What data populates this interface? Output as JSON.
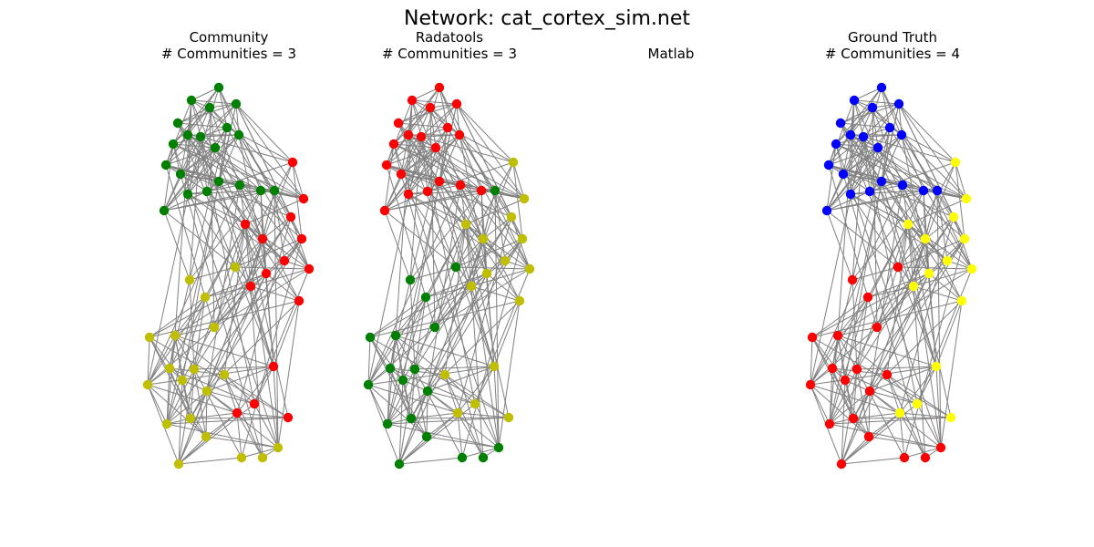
{
  "figure": {
    "title": "Network: cat_cortex_sim.net",
    "edge_color": "#808080",
    "node_colors": {
      "green": "#008000",
      "red": "#ff0000",
      "olive": "#bfbf00",
      "blue": "#0000ff",
      "yellow": "#ffff00"
    }
  },
  "panels": [
    {
      "key": "community",
      "title_line1": "Community",
      "title_line2": "# Communities = 3",
      "has_graph": true,
      "community_colors": [
        "green",
        "red",
        "olive"
      ],
      "node_communities": [
        0,
        0,
        0,
        0,
        0,
        0,
        0,
        0,
        0,
        0,
        0,
        0,
        0,
        0,
        0,
        0,
        0,
        0,
        0,
        0,
        1,
        1,
        1,
        1,
        1,
        1,
        1,
        1,
        1,
        1,
        1,
        1,
        1,
        1,
        1,
        2,
        2,
        2,
        2,
        2,
        2,
        2,
        2,
        2,
        2,
        2,
        2,
        2,
        2,
        2,
        2,
        2,
        2,
        2,
        1,
        1,
        1,
        1,
        1,
        1,
        1,
        1,
        1,
        1,
        1
      ]
    },
    {
      "key": "radatools",
      "title_line1": "Radatools",
      "title_line2": "# Communities = 3",
      "has_graph": true,
      "community_colors": [
        "red",
        "olive",
        "green"
      ],
      "node_communities": [
        0,
        0,
        0,
        0,
        0,
        0,
        0,
        0,
        0,
        0,
        0,
        0,
        0,
        0,
        0,
        0,
        0,
        0,
        0,
        2,
        1,
        1,
        1,
        1,
        1,
        1,
        1,
        1,
        1,
        1,
        1,
        1,
        1,
        1,
        1,
        2,
        2,
        2,
        2,
        2,
        2,
        2,
        2,
        2,
        2,
        2,
        2,
        2,
        2,
        2,
        2,
        2,
        2,
        1,
        1,
        1,
        1,
        1,
        1,
        1,
        1,
        1,
        1,
        1,
        1
      ]
    },
    {
      "key": "matlab",
      "title_line1": "Matlab",
      "title_line2": "",
      "has_graph": false,
      "community_colors": [],
      "node_communities": []
    },
    {
      "key": "ground-truth",
      "title_line1": "Ground Truth",
      "title_line2": "# Communities = 4",
      "has_graph": true,
      "community_colors": [
        "blue",
        "yellow",
        "red",
        "green"
      ],
      "node_communities": [
        0,
        0,
        0,
        0,
        0,
        0,
        0,
        0,
        0,
        0,
        0,
        0,
        0,
        0,
        0,
        0,
        0,
        0,
        0,
        0,
        1,
        1,
        1,
        1,
        1,
        1,
        1,
        1,
        1,
        1,
        1,
        1,
        1,
        1,
        1,
        2,
        2,
        2,
        2,
        2,
        2,
        2,
        2,
        2,
        2,
        2,
        2,
        2,
        2,
        2,
        2,
        2,
        2,
        2,
        3,
        3,
        3,
        3,
        3,
        3,
        3,
        3,
        3,
        3,
        3
      ]
    }
  ]
}
